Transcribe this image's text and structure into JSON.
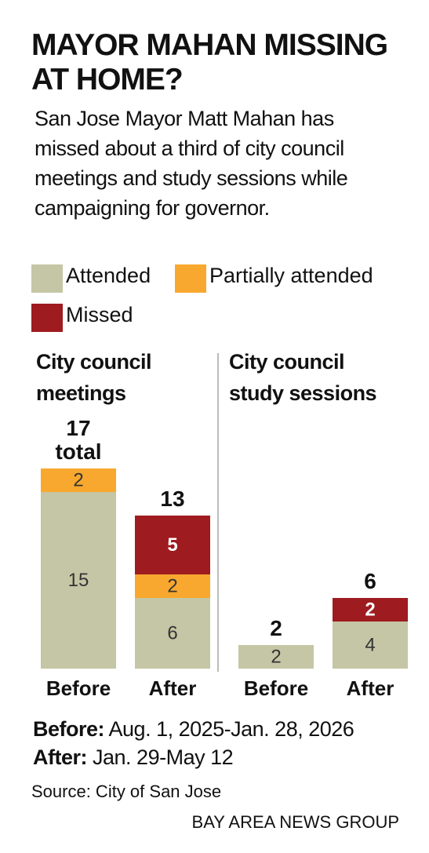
{
  "title": "MAYOR MAHAN MISSING AT HOME?",
  "subtitle": "San Jose Mayor Matt Mahan has missed about a third of city council meetings and study sessions while campaigning for governor.",
  "chart_data": [
    {
      "type": "stacked-bar",
      "title": "City council meetings",
      "categories": [
        "Before",
        "After"
      ],
      "series": [
        {
          "name": "Attended",
          "color": "#c4c6a5",
          "values": [
            15,
            6
          ]
        },
        {
          "name": "Partially attended",
          "color": "#f8a82e",
          "values": [
            2,
            2
          ]
        },
        {
          "name": "Missed",
          "color": "#9e1b1f",
          "values": [
            0,
            5
          ]
        }
      ],
      "totals": [
        17,
        13
      ],
      "total_labels": [
        "17 total",
        "13"
      ]
    },
    {
      "type": "stacked-bar",
      "title": "City council study sessions",
      "categories": [
        "Before",
        "After"
      ],
      "series": [
        {
          "color": "#c4c6a5",
          "values": [
            2,
            4
          ]
        },
        {
          "color": "#f8a82e",
          "values": [
            0,
            0
          ]
        },
        {
          "color": "#9e1b1f",
          "values": [
            0,
            2
          ]
        }
      ],
      "totals": [
        2,
        6
      ]
    }
  ],
  "notes": [
    {
      "label": "Before:",
      "text": "Aug. 1, 2025-Jan. 28, 2026"
    },
    {
      "label": "After:",
      "text": "Jan. 29-May 12"
    }
  ],
  "source": "Source: City of San Jose",
  "credit": "BAY AREA NEWS GROUP"
}
